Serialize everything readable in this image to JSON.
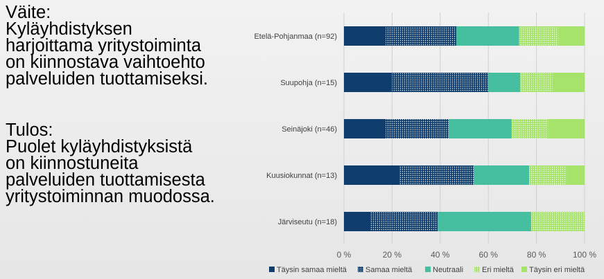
{
  "statement": {
    "heading": "Väite:",
    "lines": [
      "Kyläyhdistyksen",
      "harjoittama yritystoiminta",
      "on kiinnostava vaihtoehto",
      "palveluiden tuottamiseksi."
    ]
  },
  "result": {
    "heading": "Tulos:",
    "lines": [
      "Puolet kyläyhdistyksistä",
      "on kiinnostuneita",
      "palveluiden tuottamisesta",
      "yritystoiminnan muodossa."
    ]
  },
  "chart_data": {
    "type": "bar",
    "orientation": "horizontal",
    "stacked": "percent",
    "categories": [
      "Etelä-Pohjanmaa (n=92)",
      "Suupohja (n=15)",
      "Seinäjoki (n=46)",
      "Kuusiokunnat (n=13)",
      "Järviseutu (n=18)"
    ],
    "series": [
      {
        "name": "Täysin samaa mieltä",
        "color": "#0f3d6e",
        "pattern": "solid",
        "values": [
          17.4,
          20.0,
          17.4,
          23.1,
          11.1
        ]
      },
      {
        "name": "Samaa mieltä",
        "color": "#0f3d6e",
        "pattern": "dotted",
        "values": [
          29.3,
          40.0,
          26.1,
          30.8,
          27.8
        ]
      },
      {
        "name": "Neutraali",
        "color": "#45bf9f",
        "pattern": "solid",
        "values": [
          26.1,
          13.3,
          26.1,
          23.1,
          38.9
        ]
      },
      {
        "name": "Eri mieltä",
        "color": "#a6e36b",
        "pattern": "dotted",
        "values": [
          16.3,
          13.3,
          15.2,
          15.4,
          22.2
        ]
      },
      {
        "name": "Täysin eri mieltä",
        "color": "#a6e36b",
        "pattern": "solid",
        "values": [
          10.9,
          13.4,
          15.2,
          7.6,
          0.0
        ]
      }
    ],
    "xlim": [
      0,
      100
    ],
    "xticks": [
      "0 %",
      "20 %",
      "40 %",
      "60 %",
      "80 %",
      "100 %"
    ],
    "grid": true,
    "legend_position": "bottom"
  }
}
